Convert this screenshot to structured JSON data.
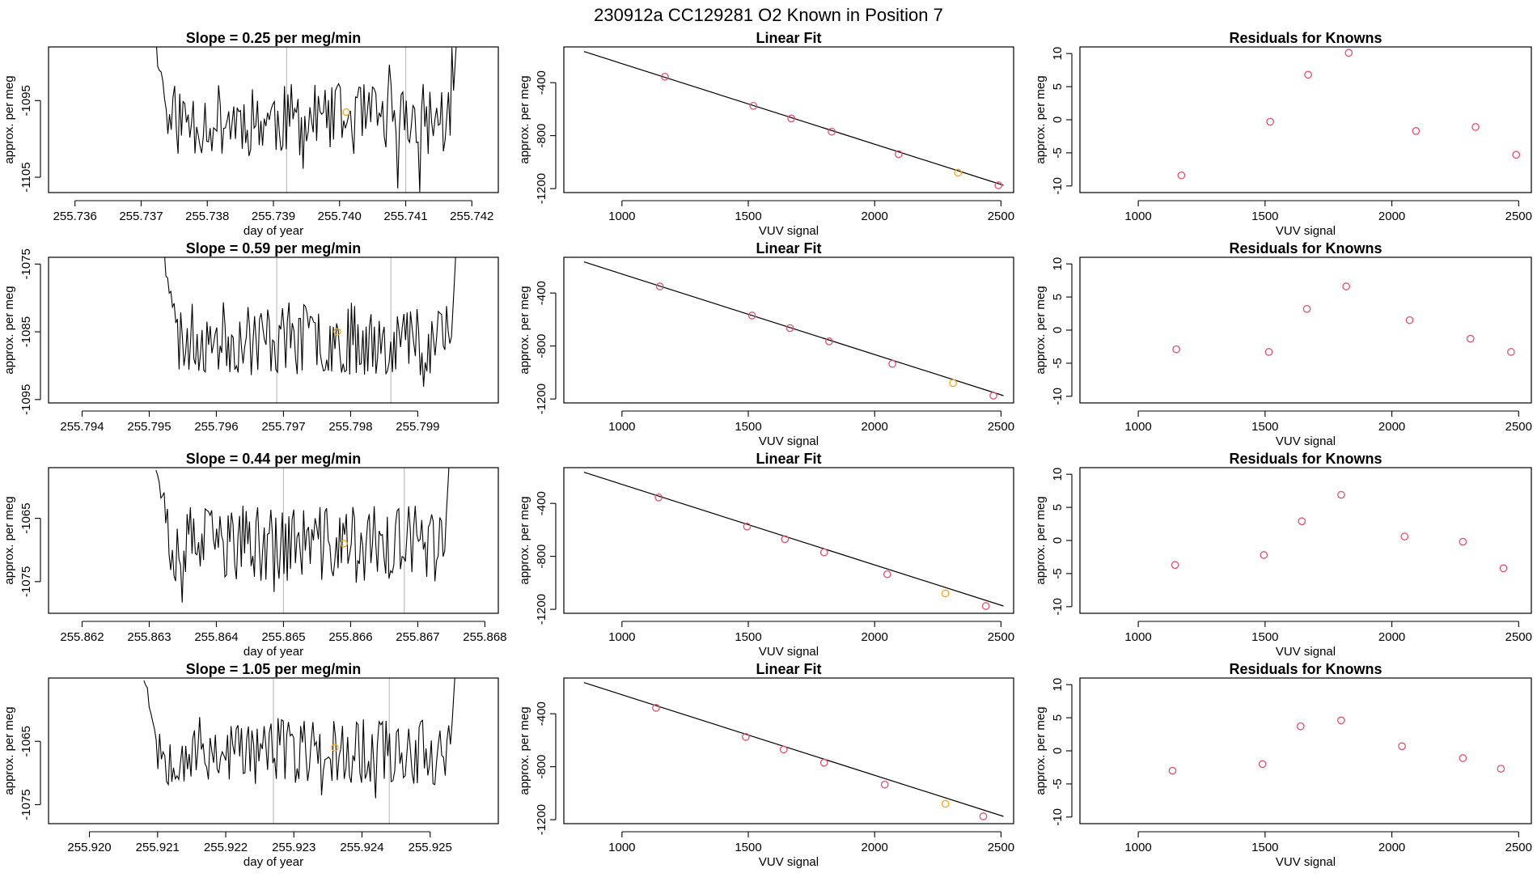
{
  "page_title": "230912a      CC129281    O2 Known in Position  7",
  "colors": {
    "trace": "#000000",
    "vline": "#bebebe",
    "point": "#df536b",
    "highlight": "#f5a623",
    "frame": "#000000"
  },
  "chart_data": [
    {
      "type": "line",
      "panel": "timeseries",
      "row": 0,
      "title": "Slope =  0.25  per meg/min",
      "xlabel": "day of year",
      "ylabel": "approx. per meg",
      "xlim": [
        255.7356,
        255.7424
      ],
      "ylim": [
        -1107,
        -1088
      ],
      "xticks": [
        "255.736",
        "255.737",
        "255.738",
        "255.739",
        "255.740",
        "255.741",
        "255.742"
      ],
      "xtick_values": [
        255.736,
        255.737,
        255.738,
        255.739,
        255.74,
        255.741,
        255.742
      ],
      "yticks": [
        "-1105",
        "-1095"
      ],
      "ytick_values": [
        -1105,
        -1095
      ],
      "vlines": [
        255.7392,
        255.741
      ],
      "trace_start": 255.7372,
      "trace_end": 255.7418,
      "center": -1097.5,
      "amplitude": 3.5,
      "seed": 11,
      "highlight": {
        "x": 255.7401,
        "y": -1096.5
      }
    },
    {
      "type": "scatter",
      "panel": "linear_fit",
      "row": 0,
      "title": "Linear Fit",
      "xlabel": "VUV signal",
      "ylabel": "approx. per meg",
      "xlim": [
        770,
        2550
      ],
      "ylim": [
        -1230,
        -130
      ],
      "xticks": [
        "1000",
        "1500",
        "2000",
        "2500"
      ],
      "xtick_values": [
        1000,
        1500,
        2000,
        2500
      ],
      "yticks": [
        "-400",
        "-800",
        "-1200"
      ],
      "ytick_values": [
        -400,
        -800,
        -1200
      ],
      "line": {
        "x": [
          850,
          2510
        ],
        "y": [
          -165,
          -1175
        ]
      },
      "x": [
        1170,
        1520,
        1670,
        1830,
        2095,
        2330,
        2490
      ],
      "y": [
        -355,
        -575,
        -670,
        -770,
        -940,
        -1080,
        -1175
      ],
      "highlight_index": 5
    },
    {
      "type": "scatter",
      "panel": "residuals",
      "row": 0,
      "title": "Residuals for Knowns",
      "xlabel": "VUV signal",
      "ylabel": "approx. per meg",
      "xlim": [
        770,
        2550
      ],
      "ylim": [
        -11,
        11
      ],
      "xticks": [
        "1000",
        "1500",
        "2000",
        "2500"
      ],
      "xtick_values": [
        1000,
        1500,
        2000,
        2500
      ],
      "yticks": [
        "-10",
        "-5",
        "0",
        "5",
        "10"
      ],
      "ytick_values": [
        -10,
        -5,
        0,
        5,
        10
      ],
      "x": [
        1170,
        1520,
        1670,
        1830,
        2095,
        2330,
        2490
      ],
      "y": [
        -8.4,
        -0.3,
        6.8,
        10.1,
        -1.7,
        -1.1,
        -5.3
      ]
    },
    {
      "type": "line",
      "panel": "timeseries",
      "row": 1,
      "title": "Slope =  0.59  per meg/min",
      "xlabel": "",
      "ylabel": "approx. per meg",
      "xlim": [
        255.7935,
        255.8002
      ],
      "ylim": [
        -1095.5,
        -1074
      ],
      "xticks": [
        "255.794",
        "255.795",
        "255.796",
        "255.797",
        "255.798",
        "255.799"
      ],
      "xtick_values": [
        255.794,
        255.795,
        255.796,
        255.797,
        255.798,
        255.799
      ],
      "yticks": [
        "-1075",
        "-1085",
        "-1095"
      ],
      "ytick_values": [
        -1075,
        -1085,
        -1095
      ],
      "vlines": [
        255.7969,
        255.7986
      ],
      "trace_start": 255.7952,
      "trace_end": 255.7996,
      "center": -1086,
      "amplitude": 4,
      "seed": 23,
      "highlight": {
        "x": 255.7978,
        "y": -1085
      }
    },
    {
      "type": "scatter",
      "panel": "linear_fit",
      "row": 1,
      "title": "Linear Fit",
      "xlabel": "VUV signal",
      "ylabel": "approx. per meg",
      "xlim": [
        770,
        2550
      ],
      "ylim": [
        -1230,
        -130
      ],
      "xticks": [
        "1000",
        "1500",
        "2000",
        "2500"
      ],
      "xtick_values": [
        1000,
        1500,
        2000,
        2500
      ],
      "yticks": [
        "-400",
        "-800",
        "-1200"
      ],
      "ytick_values": [
        -400,
        -800,
        -1200
      ],
      "line": {
        "x": [
          850,
          2510
        ],
        "y": [
          -165,
          -1175
        ]
      },
      "x": [
        1150,
        1515,
        1665,
        1820,
        2070,
        2310,
        2470
      ],
      "y": [
        -350,
        -570,
        -665,
        -765,
        -935,
        -1080,
        -1175
      ],
      "highlight_index": 5
    },
    {
      "type": "scatter",
      "panel": "residuals",
      "row": 1,
      "title": "Residuals for Knowns",
      "xlabel": "VUV signal",
      "ylabel": "approx. per meg",
      "xlim": [
        770,
        2550
      ],
      "ylim": [
        -11,
        11
      ],
      "xticks": [
        "1000",
        "1500",
        "2000",
        "2500"
      ],
      "xtick_values": [
        1000,
        1500,
        2000,
        2500
      ],
      "yticks": [
        "-10",
        "-5",
        "0",
        "5",
        "10"
      ],
      "ytick_values": [
        -10,
        -5,
        0,
        5,
        10
      ],
      "x": [
        1150,
        1515,
        1665,
        1820,
        2070,
        2310,
        2470
      ],
      "y": [
        -2.9,
        -3.3,
        3.2,
        6.6,
        1.5,
        -1.3,
        -3.3
      ]
    },
    {
      "type": "line",
      "panel": "timeseries",
      "row": 2,
      "title": "Slope =  0.44  per meg/min",
      "xlabel": "day of year",
      "ylabel": "approx. per meg",
      "xlim": [
        255.8615,
        255.8682
      ],
      "ylim": [
        -1080,
        -1057
      ],
      "xticks": [
        "255.862",
        "255.863",
        "255.864",
        "255.865",
        "255.866",
        "255.867",
        "255.868"
      ],
      "xtick_values": [
        255.862,
        255.863,
        255.864,
        255.865,
        255.866,
        255.867,
        255.868
      ],
      "yticks": [
        "-1065",
        "-1075"
      ],
      "ytick_values": [
        -1065,
        -1075
      ],
      "vlines": [
        255.865,
        255.8668
      ],
      "trace_start": 255.8631,
      "trace_end": 255.8675,
      "center": -1069,
      "amplitude": 4.5,
      "seed": 37,
      "highlight": {
        "x": 255.8659,
        "y": -1069
      }
    },
    {
      "type": "scatter",
      "panel": "linear_fit",
      "row": 2,
      "title": "Linear Fit",
      "xlabel": "VUV signal",
      "ylabel": "approx. per meg",
      "xlim": [
        770,
        2550
      ],
      "ylim": [
        -1230,
        -130
      ],
      "xticks": [
        "1000",
        "1500",
        "2000",
        "2500"
      ],
      "xtick_values": [
        1000,
        1500,
        2000,
        2500
      ],
      "yticks": [
        "-400",
        "-800",
        "-1200"
      ],
      "ytick_values": [
        -400,
        -800,
        -1200
      ],
      "line": {
        "x": [
          850,
          2510
        ],
        "y": [
          -165,
          -1175
        ]
      },
      "x": [
        1145,
        1495,
        1645,
        1800,
        2050,
        2280,
        2440
      ],
      "y": [
        -355,
        -575,
        -670,
        -770,
        -935,
        -1080,
        -1175
      ],
      "highlight_index": 5
    },
    {
      "type": "scatter",
      "panel": "residuals",
      "row": 2,
      "title": "Residuals for Knowns",
      "xlabel": "VUV signal",
      "ylabel": "approx. per meg",
      "xlim": [
        770,
        2550
      ],
      "ylim": [
        -11,
        11
      ],
      "xticks": [
        "1000",
        "1500",
        "2000",
        "2500"
      ],
      "xtick_values": [
        1000,
        1500,
        2000,
        2500
      ],
      "yticks": [
        "-10",
        "-5",
        "0",
        "5",
        "10"
      ],
      "ytick_values": [
        -10,
        -5,
        0,
        5,
        10
      ],
      "x": [
        1145,
        1495,
        1645,
        1800,
        2050,
        2280,
        2440
      ],
      "y": [
        -3.7,
        -2.2,
        2.9,
        6.9,
        0.6,
        -0.2,
        -4.2
      ]
    },
    {
      "type": "line",
      "panel": "timeseries",
      "row": 3,
      "title": "Slope =  1.05  per meg/min",
      "xlabel": "day of year",
      "ylabel": "approx. per meg",
      "xlim": [
        255.9194,
        255.926
      ],
      "ylim": [
        -1078,
        -1055
      ],
      "xticks": [
        "255.920",
        "255.921",
        "255.922",
        "255.923",
        "255.924",
        "255.925"
      ],
      "xtick_values": [
        255.92,
        255.921,
        255.922,
        255.923,
        255.924,
        255.925
      ],
      "yticks": [
        "-1065",
        "-1075"
      ],
      "ytick_values": [
        -1065,
        -1075
      ],
      "vlines": [
        255.9227,
        255.9244
      ],
      "trace_start": 255.9208,
      "trace_end": 255.9254,
      "center": -1066.5,
      "amplitude": 4,
      "seed": 53,
      "highlight": {
        "x": 255.9236,
        "y": -1066
      }
    },
    {
      "type": "scatter",
      "panel": "linear_fit",
      "row": 3,
      "title": "Linear Fit",
      "xlabel": "VUV signal",
      "ylabel": "approx. per meg",
      "xlim": [
        770,
        2550
      ],
      "ylim": [
        -1230,
        -130
      ],
      "xticks": [
        "1000",
        "1500",
        "2000",
        "2500"
      ],
      "xtick_values": [
        1000,
        1500,
        2000,
        2500
      ],
      "yticks": [
        "-400",
        "-800",
        "-1200"
      ],
      "ytick_values": [
        -400,
        -800,
        -1200
      ],
      "line": {
        "x": [
          850,
          2510
        ],
        "y": [
          -165,
          -1175
        ]
      },
      "x": [
        1135,
        1490,
        1640,
        1800,
        2040,
        2280,
        2430
      ],
      "y": [
        -355,
        -575,
        -670,
        -770,
        -935,
        -1080,
        -1175
      ],
      "highlight_index": 5
    },
    {
      "type": "scatter",
      "panel": "residuals",
      "row": 3,
      "title": "Residuals for Knowns",
      "xlabel": "VUV signal",
      "ylabel": "approx. per meg",
      "xlim": [
        770,
        2550
      ],
      "ylim": [
        -11,
        11
      ],
      "xticks": [
        "1000",
        "1500",
        "2000",
        "2500"
      ],
      "xtick_values": [
        1000,
        1500,
        2000,
        2500
      ],
      "yticks": [
        "-10",
        "-5",
        "0",
        "5",
        "10"
      ],
      "ytick_values": [
        -10,
        -5,
        0,
        5,
        10
      ],
      "x": [
        1135,
        1490,
        1640,
        1800,
        2040,
        2280,
        2430
      ],
      "y": [
        -3.0,
        -2.0,
        3.7,
        4.6,
        0.7,
        -1.1,
        -2.7
      ]
    }
  ]
}
